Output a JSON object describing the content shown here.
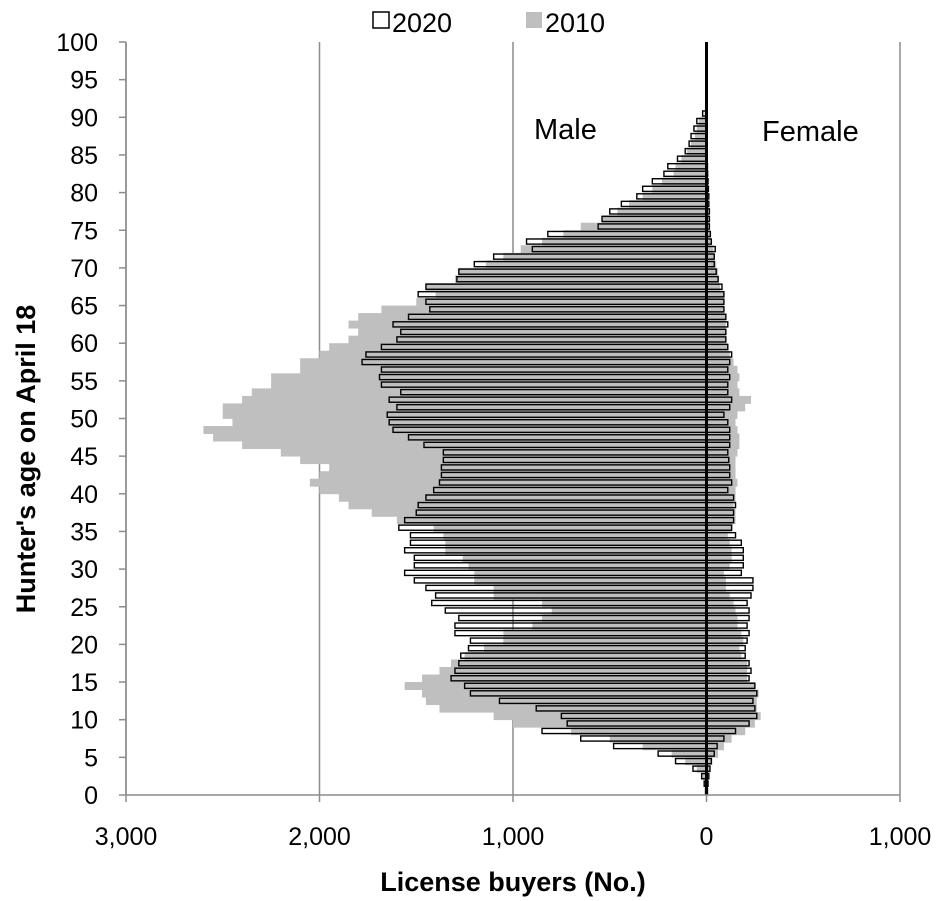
{
  "chart_data": {
    "type": "bar",
    "orientation": "horizontal",
    "xlabel": "License buyers (No.)",
    "ylabel": "Hunter's age on April 18",
    "xlim": [
      -3000,
      1000
    ],
    "ylim": [
      0,
      100
    ],
    "x_ticks": [
      -3000,
      -2000,
      -1000,
      0,
      1000
    ],
    "x_tick_labels": [
      "3,000",
      "2,000",
      "1,000",
      "0",
      "1,000"
    ],
    "y_ticks": [
      0,
      5,
      10,
      15,
      20,
      25,
      30,
      35,
      40,
      45,
      50,
      55,
      60,
      65,
      70,
      75,
      80,
      85,
      90,
      95,
      100
    ],
    "grid": "vertical",
    "legend_position": "top",
    "annotations": [
      {
        "text": "Male"
      },
      {
        "text": "Female"
      }
    ],
    "series_colors": {
      "2020": "#ffffff",
      "2010": "#bfbfbf"
    },
    "ages": [
      0,
      1,
      2,
      3,
      4,
      5,
      6,
      7,
      8,
      9,
      10,
      11,
      12,
      13,
      14,
      15,
      16,
      17,
      18,
      19,
      20,
      21,
      22,
      23,
      24,
      25,
      26,
      27,
      28,
      29,
      30,
      31,
      32,
      33,
      34,
      35,
      36,
      37,
      38,
      39,
      40,
      41,
      42,
      43,
      44,
      45,
      46,
      47,
      48,
      49,
      50,
      51,
      52,
      53,
      54,
      55,
      56,
      57,
      58,
      59,
      60,
      61,
      62,
      63,
      64,
      65,
      66,
      67,
      68,
      69,
      70,
      71,
      72,
      73,
      74,
      75,
      76,
      77,
      78,
      79,
      80,
      81,
      82,
      83,
      84,
      85,
      86,
      87,
      88,
      89,
      90
    ],
    "series": [
      {
        "name": "2020",
        "male": [
          5,
          12,
          25,
          70,
          160,
          250,
          480,
          650,
          850,
          720,
          750,
          880,
          1070,
          1220,
          1250,
          1320,
          1300,
          1280,
          1270,
          1230,
          1220,
          1300,
          1300,
          1280,
          1350,
          1420,
          1400,
          1450,
          1510,
          1560,
          1510,
          1510,
          1560,
          1530,
          1530,
          1590,
          1560,
          1500,
          1490,
          1450,
          1410,
          1380,
          1370,
          1370,
          1360,
          1360,
          1460,
          1540,
          1620,
          1640,
          1650,
          1600,
          1640,
          1580,
          1680,
          1690,
          1680,
          1780,
          1760,
          1680,
          1600,
          1580,
          1620,
          1540,
          1430,
          1450,
          1490,
          1450,
          1290,
          1280,
          1200,
          1100,
          900,
          930,
          820,
          560,
          540,
          500,
          440,
          360,
          330,
          280,
          220,
          200,
          150,
          110,
          90,
          80,
          65,
          50,
          20
        ],
        "female": [
          5,
          8,
          12,
          18,
          25,
          40,
          55,
          90,
          150,
          220,
          260,
          250,
          240,
          260,
          250,
          220,
          230,
          220,
          200,
          200,
          210,
          220,
          210,
          220,
          220,
          210,
          230,
          240,
          240,
          180,
          190,
          190,
          190,
          180,
          150,
          130,
          140,
          140,
          150,
          140,
          110,
          130,
          120,
          120,
          115,
          110,
          120,
          120,
          120,
          110,
          90,
          120,
          130,
          110,
          110,
          120,
          110,
          120,
          130,
          110,
          100,
          100,
          110,
          100,
          90,
          90,
          90,
          80,
          60,
          50,
          40,
          40,
          45,
          25,
          20,
          15,
          15,
          15,
          12,
          12,
          10,
          8,
          6,
          5,
          4,
          3,
          2,
          2,
          1,
          1,
          1
        ]
      },
      {
        "name": "2010",
        "male": [
          5,
          10,
          20,
          50,
          110,
          180,
          330,
          500,
          700,
          1000,
          1100,
          1380,
          1450,
          1470,
          1560,
          1470,
          1380,
          1320,
          1250,
          1150,
          1050,
          1050,
          900,
          850,
          800,
          850,
          1100,
          1100,
          1200,
          1200,
          1230,
          1260,
          1350,
          1350,
          1360,
          1410,
          1600,
          1730,
          1850,
          1900,
          2000,
          2050,
          2000,
          1950,
          2100,
          2200,
          2400,
          2550,
          2600,
          2450,
          2500,
          2500,
          2400,
          2350,
          2250,
          2250,
          2100,
          2100,
          2000,
          1950,
          1850,
          1800,
          1850,
          1800,
          1680,
          1500,
          1400,
          1450,
          1300,
          1280,
          1140,
          1050,
          960,
          850,
          740,
          650,
          540,
          460,
          400,
          330,
          280,
          230,
          170,
          160,
          130,
          100,
          80,
          60,
          50,
          40,
          10
        ],
        "female": [
          4,
          8,
          12,
          20,
          30,
          60,
          90,
          130,
          200,
          250,
          280,
          260,
          260,
          270,
          250,
          210,
          210,
          210,
          180,
          170,
          190,
          180,
          160,
          160,
          150,
          140,
          120,
          100,
          100,
          90,
          120,
          130,
          130,
          120,
          110,
          130,
          150,
          150,
          140,
          150,
          150,
          160,
          150,
          150,
          150,
          160,
          170,
          170,
          160,
          150,
          160,
          200,
          230,
          170,
          160,
          170,
          160,
          140,
          120,
          110,
          100,
          100,
          100,
          100,
          90,
          90,
          90,
          70,
          65,
          60,
          50,
          40,
          35,
          25,
          20,
          15,
          15,
          15,
          12,
          12,
          10,
          8,
          6,
          5,
          4,
          3,
          2,
          2,
          1,
          1,
          1
        ]
      }
    ]
  }
}
